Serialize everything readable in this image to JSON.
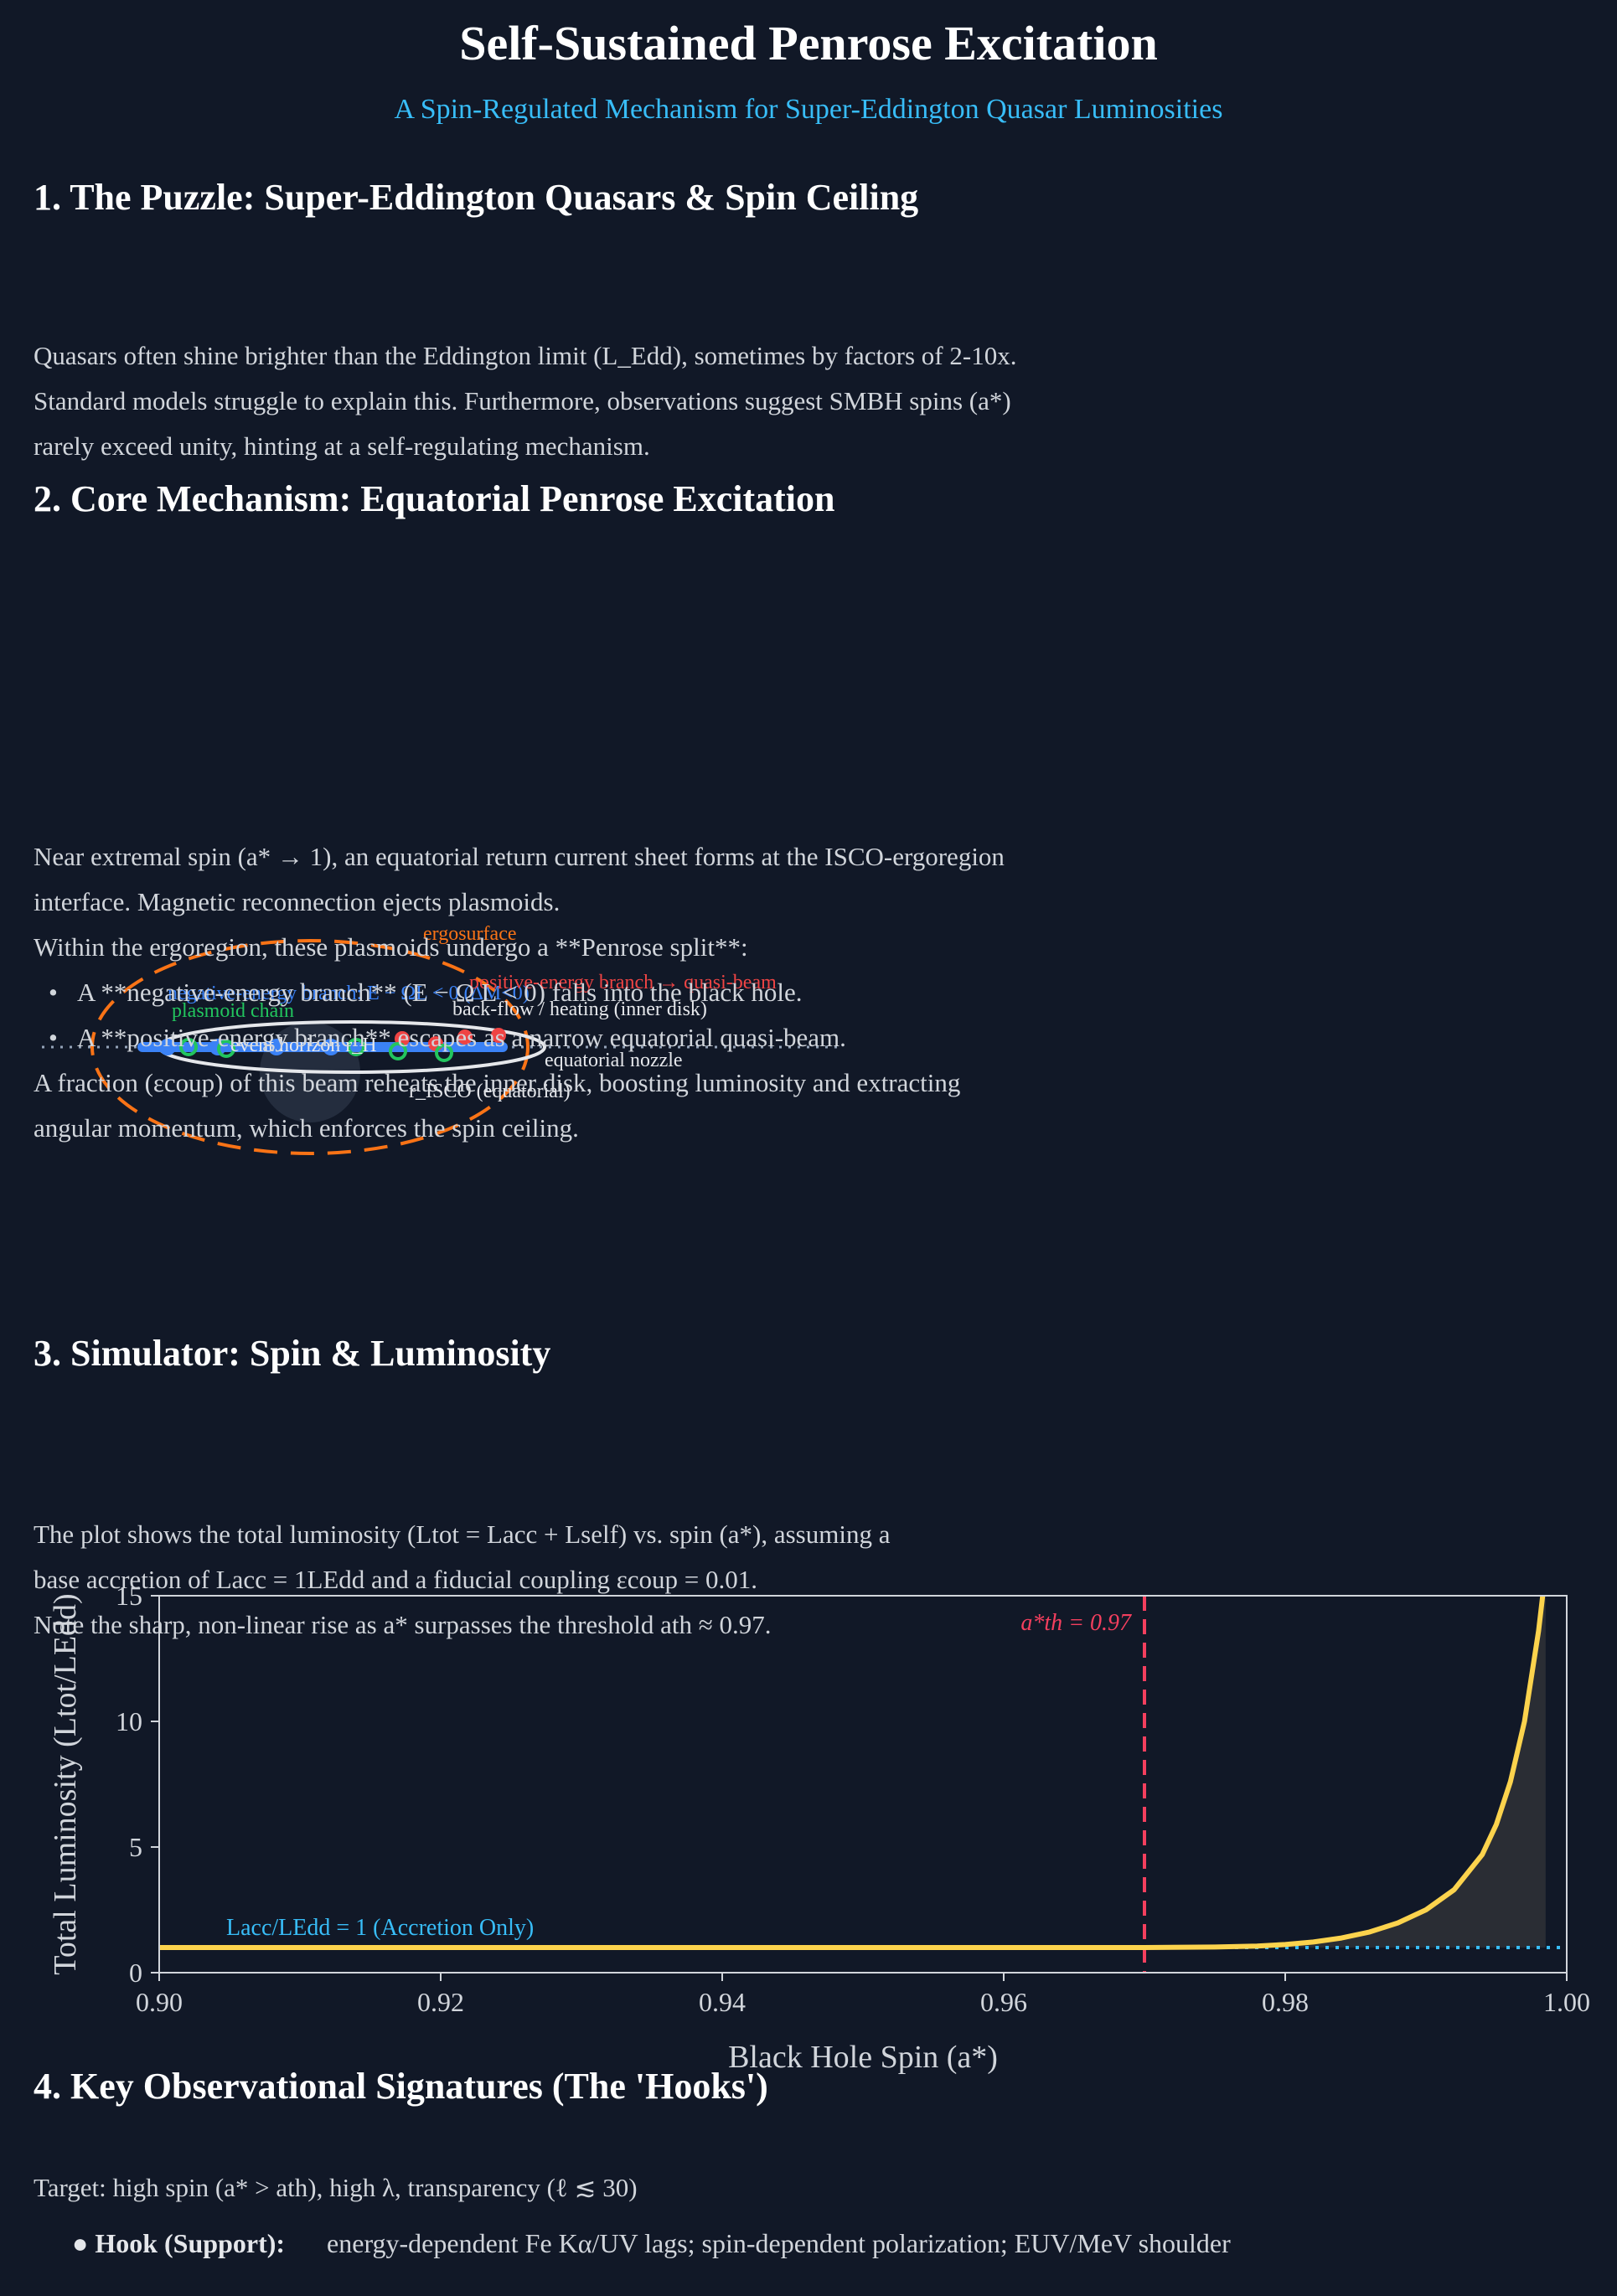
{
  "title": "Self-Sustained Penrose Excitation",
  "subtitle": "A Spin-Regulated Mechanism for Super-Eddington Quasar Luminosities",
  "sections": [
    {
      "heading": "1. The Puzzle: Super-Eddington Quasars & Spin Ceiling",
      "lines": [
        "Quasars often shine brighter than the Eddington limit (L_Edd), sometimes by factors of 2-10x.",
        "Standard models struggle to explain this. Furthermore, observations suggest SMBH spins (a*)",
        "rarely exceed unity, hinting at a self-regulating mechanism."
      ]
    },
    {
      "heading": "2. Core Mechanism: Equatorial Penrose Excitation",
      "line1": "Near extremal spin (a* → 1), an equatorial return current sheet forms at the ISCO-ergoregion",
      "line2": "interface. Magnetic reconnection ejects plasmoids.",
      "line3": "Within the ergoregion, these plasmoids undergo a **Penrose split**:",
      "bullet1": "A **negative-energy branch** (E − Ω L < 0) falls into the black hole.",
      "bullet2": "A **positive-energy branch** escapes as a narrow equatorial quasi-beam.",
      "line4": "A fraction (εcoup) of this beam reheats the inner disk, boosting luminosity and extracting",
      "line5": "angular momentum, which enforces the spin ceiling."
    },
    {
      "heading": "3. Simulator: Spin & Luminosity",
      "line1": "The plot shows the total luminosity (Ltot = Lacc + Lself) vs. spin (a*), assuming a",
      "line2": "base accretion of Lacc = 1LEdd and a fiducial coupling εcoup = 0.01.",
      "line3": "Note the sharp, non-linear rise as a* surpasses the threshold ath ≈ 0.97."
    },
    {
      "heading": "4. Key Observational Signatures (The 'Hooks')",
      "target": "Target: high spin (a* > ath), high λ, transparency (ℓ ≲ 30)",
      "hook_label": "Hook (Support):",
      "hook_text": "energy-dependent Fe Kα/UV lags; spin-dependent polarization; EUV/MeV shoulder"
    }
  ],
  "diagram": {
    "labels": {
      "ergosurface": "ergosurface",
      "negative_branch": "negative-energy branch: E − ΩL < 0 (ΔM<0)",
      "positive_branch": "positive-energy branch → quasi-beam",
      "plasmoid_chain": "plasmoid chain",
      "back_flow": "back-flow / heating (inner disk)",
      "event_horizon": "event horizon r_H",
      "equatorial_nozzle": "equatorial nozzle",
      "risco": "r_ISCO (equatorial)"
    },
    "colors": {
      "ergosurface": "#f97316",
      "negative": "#3b82f6",
      "positive": "#ef4444",
      "plasmoid": "#22c55e",
      "disk": "#e5e7eb"
    }
  },
  "chart_data": {
    "type": "line",
    "xlabel": "Black Hole Spin (a*)",
    "ylabel": "Total Luminosity (Ltot/LEdd)",
    "xlim": [
      0.9,
      1.0
    ],
    "ylim": [
      0,
      15
    ],
    "xticks": [
      "0.90",
      "0.92",
      "0.94",
      "0.96",
      "0.98",
      "1.00"
    ],
    "yticks": [
      "0",
      "5",
      "10",
      "15"
    ],
    "threshold": {
      "x": 0.97,
      "label": "a*th = 0.97",
      "color": "#f43f5e"
    },
    "baseline": {
      "y": 1,
      "label": "Lacc/LEdd = 1 (Accretion Only)",
      "color": "#38bdf8"
    },
    "series": [
      {
        "color": "#fcd34d",
        "x": [
          0.9,
          0.97,
          0.975,
          0.978,
          0.98,
          0.982,
          0.984,
          0.986,
          0.988,
          0.99,
          0.992,
          0.994,
          0.995,
          0.996,
          0.997,
          0.998,
          0.9985
        ],
        "y": [
          1.0,
          1.0,
          1.02,
          1.06,
          1.12,
          1.22,
          1.38,
          1.62,
          1.98,
          2.5,
          3.3,
          4.7,
          5.9,
          7.6,
          10.0,
          13.6,
          16.0
        ]
      }
    ],
    "grid": false
  }
}
